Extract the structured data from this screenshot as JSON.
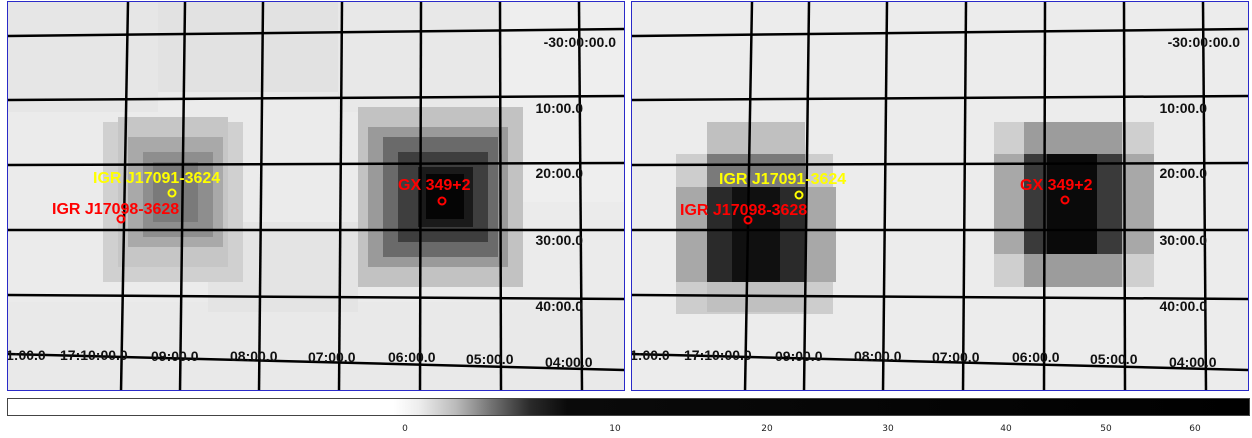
{
  "colorbar": {
    "ticks": [
      "0",
      "10",
      "20",
      "30",
      "40",
      "50",
      "60"
    ]
  },
  "panels": [
    {
      "id": "left",
      "dec_labels": [
        "-30:00:00.0",
        "10:00.0",
        "20:00.0",
        "30:00.0",
        "40:00.0"
      ],
      "ra_labels": [
        "1:00.0",
        "17:10:00.0",
        "09:00.0",
        "08:00.0",
        "07:00.0",
        "06:00.0",
        "05:00.0",
        "04:00.0"
      ],
      "sources": [
        {
          "name": "IGR J17091-3624",
          "color": "#ffff00"
        },
        {
          "name": "IGR J17098-3628",
          "color": "#ff0000"
        },
        {
          "name": "GX 349+2",
          "color": "#ff0000"
        }
      ]
    },
    {
      "id": "right",
      "dec_labels": [
        "-30:00:00.0",
        "10:00.0",
        "20:00.0",
        "30:00.0",
        "40:00.0"
      ],
      "ra_labels": [
        "1:00.0",
        "17:10:00.0",
        "09:00.0",
        "08:00.0",
        "07:00.0",
        "06:00.0",
        "05:00.0",
        "04:00.0"
      ],
      "sources": [
        {
          "name": "IGR J17091-3624",
          "color": "#ffff00"
        },
        {
          "name": "IGR J17098-3628",
          "color": "#ff0000"
        },
        {
          "name": "GX 349+2",
          "color": "#ff0000"
        }
      ]
    }
  ]
}
